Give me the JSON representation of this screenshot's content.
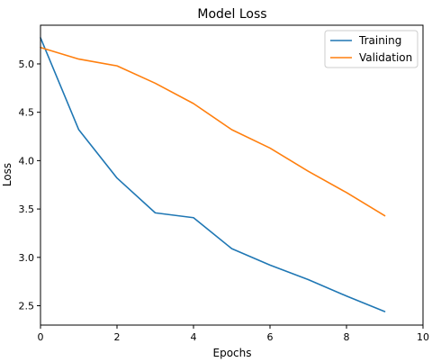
{
  "chart_data": {
    "type": "line",
    "title": "Model Loss",
    "xlabel": "Epochs",
    "ylabel": "Loss",
    "x": [
      0,
      1,
      2,
      3,
      4,
      5,
      6,
      7,
      8,
      9
    ],
    "xlim": [
      0,
      10
    ],
    "ylim": [
      2.3,
      5.4
    ],
    "xticks": [
      0,
      2,
      4,
      6,
      8,
      10
    ],
    "xtick_labels": [
      "0",
      "2",
      "4",
      "6",
      "8",
      "10"
    ],
    "yticks": [
      2.5,
      3.0,
      3.5,
      4.0,
      4.5,
      5.0
    ],
    "ytick_labels": [
      "2.5",
      "3.0",
      "3.5",
      "4.0",
      "4.5",
      "5.0"
    ],
    "grid": false,
    "legend_position": "top-right",
    "series": [
      {
        "name": "Training",
        "color": "#1f77b4",
        "values": [
          5.27,
          4.32,
          3.82,
          3.46,
          3.41,
          3.09,
          2.92,
          2.77,
          2.6,
          2.44
        ]
      },
      {
        "name": "Validation",
        "color": "#ff7f0e",
        "values": [
          5.17,
          5.05,
          4.98,
          4.8,
          4.59,
          4.32,
          4.13,
          3.89,
          3.67,
          3.43
        ]
      }
    ]
  }
}
